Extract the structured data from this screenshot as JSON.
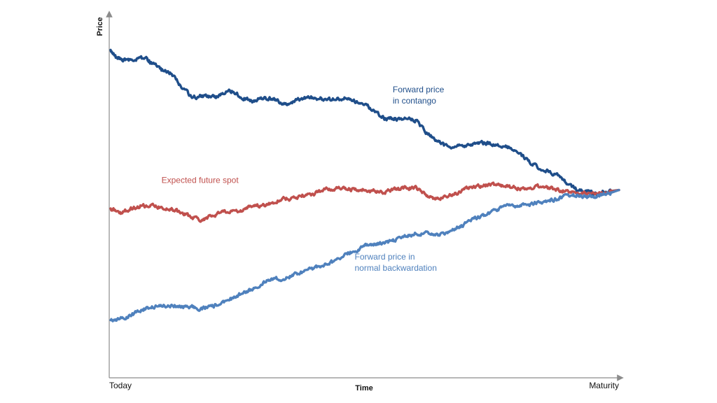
{
  "chart_data": {
    "type": "line",
    "title": "",
    "xlabel": "Time",
    "ylabel": "Price",
    "x_tick_labels": [
      "Today",
      "Maturity"
    ],
    "xlim": [
      0,
      1
    ],
    "ylim": [
      0,
      1
    ],
    "grid": false,
    "legend": "none",
    "series": [
      {
        "key": "contango",
        "color": "#1f4e8a",
        "points": [
          [
            0.0,
            0.935
          ],
          [
            0.01,
            0.915
          ],
          [
            0.02,
            0.91
          ],
          [
            0.03,
            0.905
          ],
          [
            0.05,
            0.91
          ],
          [
            0.07,
            0.915
          ],
          [
            0.08,
            0.9
          ],
          [
            0.1,
            0.88
          ],
          [
            0.12,
            0.87
          ],
          [
            0.14,
            0.83
          ],
          [
            0.16,
            0.8
          ],
          [
            0.18,
            0.805
          ],
          [
            0.2,
            0.8
          ],
          [
            0.22,
            0.81
          ],
          [
            0.24,
            0.82
          ],
          [
            0.26,
            0.8
          ],
          [
            0.28,
            0.79
          ],
          [
            0.3,
            0.8
          ],
          [
            0.32,
            0.795
          ],
          [
            0.34,
            0.78
          ],
          [
            0.36,
            0.79
          ],
          [
            0.38,
            0.8
          ],
          [
            0.4,
            0.8
          ],
          [
            0.42,
            0.795
          ],
          [
            0.44,
            0.795
          ],
          [
            0.46,
            0.8
          ],
          [
            0.48,
            0.79
          ],
          [
            0.5,
            0.78
          ],
          [
            0.52,
            0.76
          ],
          [
            0.54,
            0.74
          ],
          [
            0.56,
            0.74
          ],
          [
            0.58,
            0.74
          ],
          [
            0.6,
            0.735
          ],
          [
            0.62,
            0.7
          ],
          [
            0.64,
            0.68
          ],
          [
            0.66,
            0.66
          ],
          [
            0.68,
            0.66
          ],
          [
            0.7,
            0.66
          ],
          [
            0.72,
            0.67
          ],
          [
            0.74,
            0.67
          ],
          [
            0.76,
            0.665
          ],
          [
            0.78,
            0.66
          ],
          [
            0.8,
            0.645
          ],
          [
            0.82,
            0.62
          ],
          [
            0.84,
            0.6
          ],
          [
            0.86,
            0.59
          ],
          [
            0.88,
            0.575
          ],
          [
            0.9,
            0.55
          ],
          [
            0.92,
            0.535
          ],
          [
            0.94,
            0.53
          ],
          [
            0.95,
            0.525
          ],
          [
            0.96,
            0.52
          ],
          [
            0.97,
            0.53
          ],
          [
            0.985,
            0.532
          ],
          [
            1.0,
            0.535
          ]
        ]
      },
      {
        "key": "expected_spot",
        "color": "#c0504d",
        "points": [
          [
            0.0,
            0.48
          ],
          [
            0.02,
            0.47
          ],
          [
            0.04,
            0.48
          ],
          [
            0.06,
            0.49
          ],
          [
            0.08,
            0.49
          ],
          [
            0.1,
            0.485
          ],
          [
            0.12,
            0.48
          ],
          [
            0.14,
            0.47
          ],
          [
            0.16,
            0.455
          ],
          [
            0.18,
            0.45
          ],
          [
            0.2,
            0.46
          ],
          [
            0.22,
            0.47
          ],
          [
            0.24,
            0.475
          ],
          [
            0.26,
            0.475
          ],
          [
            0.28,
            0.49
          ],
          [
            0.3,
            0.49
          ],
          [
            0.32,
            0.5
          ],
          [
            0.34,
            0.51
          ],
          [
            0.36,
            0.51
          ],
          [
            0.38,
            0.52
          ],
          [
            0.4,
            0.525
          ],
          [
            0.42,
            0.535
          ],
          [
            0.44,
            0.54
          ],
          [
            0.46,
            0.54
          ],
          [
            0.48,
            0.535
          ],
          [
            0.5,
            0.535
          ],
          [
            0.52,
            0.53
          ],
          [
            0.54,
            0.53
          ],
          [
            0.56,
            0.535
          ],
          [
            0.58,
            0.54
          ],
          [
            0.6,
            0.54
          ],
          [
            0.62,
            0.52
          ],
          [
            0.64,
            0.51
          ],
          [
            0.66,
            0.515
          ],
          [
            0.68,
            0.525
          ],
          [
            0.7,
            0.54
          ],
          [
            0.72,
            0.545
          ],
          [
            0.74,
            0.55
          ],
          [
            0.76,
            0.55
          ],
          [
            0.78,
            0.545
          ],
          [
            0.8,
            0.54
          ],
          [
            0.82,
            0.54
          ],
          [
            0.84,
            0.545
          ],
          [
            0.86,
            0.54
          ],
          [
            0.88,
            0.535
          ],
          [
            0.9,
            0.53
          ],
          [
            0.92,
            0.525
          ],
          [
            0.94,
            0.53
          ],
          [
            0.96,
            0.525
          ],
          [
            0.98,
            0.53
          ],
          [
            1.0,
            0.535
          ]
        ]
      },
      {
        "key": "backwardation",
        "color": "#4f81bd",
        "points": [
          [
            0.0,
            0.16
          ],
          [
            0.02,
            0.165
          ],
          [
            0.04,
            0.175
          ],
          [
            0.06,
            0.19
          ],
          [
            0.08,
            0.2
          ],
          [
            0.1,
            0.2
          ],
          [
            0.12,
            0.205
          ],
          [
            0.14,
            0.2
          ],
          [
            0.16,
            0.2
          ],
          [
            0.18,
            0.195
          ],
          [
            0.2,
            0.2
          ],
          [
            0.22,
            0.21
          ],
          [
            0.24,
            0.225
          ],
          [
            0.26,
            0.24
          ],
          [
            0.28,
            0.25
          ],
          [
            0.3,
            0.27
          ],
          [
            0.32,
            0.28
          ],
          [
            0.34,
            0.28
          ],
          [
            0.36,
            0.29
          ],
          [
            0.38,
            0.3
          ],
          [
            0.4,
            0.31
          ],
          [
            0.42,
            0.32
          ],
          [
            0.44,
            0.33
          ],
          [
            0.46,
            0.35
          ],
          [
            0.48,
            0.36
          ],
          [
            0.5,
            0.375
          ],
          [
            0.52,
            0.38
          ],
          [
            0.54,
            0.385
          ],
          [
            0.56,
            0.39
          ],
          [
            0.58,
            0.4
          ],
          [
            0.6,
            0.41
          ],
          [
            0.62,
            0.41
          ],
          [
            0.64,
            0.405
          ],
          [
            0.66,
            0.41
          ],
          [
            0.68,
            0.425
          ],
          [
            0.7,
            0.44
          ],
          [
            0.72,
            0.455
          ],
          [
            0.74,
            0.465
          ],
          [
            0.76,
            0.48
          ],
          [
            0.78,
            0.49
          ],
          [
            0.8,
            0.49
          ],
          [
            0.82,
            0.49
          ],
          [
            0.84,
            0.5
          ],
          [
            0.86,
            0.505
          ],
          [
            0.88,
            0.51
          ],
          [
            0.9,
            0.52
          ],
          [
            0.92,
            0.52
          ],
          [
            0.94,
            0.515
          ],
          [
            0.96,
            0.52
          ],
          [
            0.98,
            0.525
          ],
          [
            1.0,
            0.535
          ]
        ]
      }
    ],
    "annotations": [
      {
        "key": "contango",
        "lines": [
          "Forward price",
          "in contango"
        ],
        "x": 0.555,
        "y": 0.815,
        "color": "#1f4e8a"
      },
      {
        "key": "expected_spot",
        "lines": [
          "Expected future spot"
        ],
        "x": 0.1,
        "y": 0.555,
        "color": "#c0504d"
      },
      {
        "key": "backwardation",
        "lines": [
          "Forward price in",
          "normal backwardation"
        ],
        "x": 0.48,
        "y": 0.335,
        "color": "#4f81bd"
      }
    ]
  }
}
